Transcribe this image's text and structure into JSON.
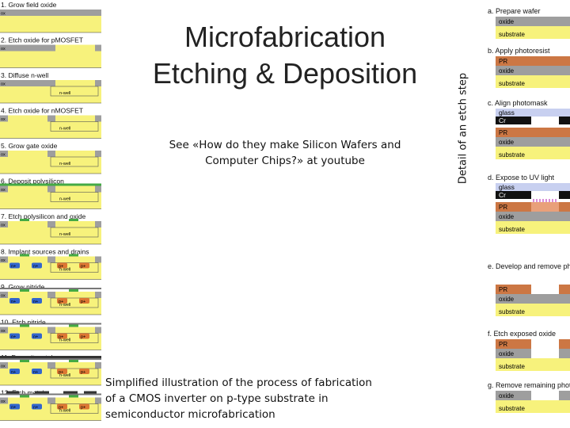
{
  "title": {
    "line1": "Microfabrication",
    "line2": "Etching & Deposition"
  },
  "note": "See «How do they make Silicon Wafers and Computer Chips?» at youtube",
  "caption": "Simplified illustration of the process of fabrication of a CMOS inverter on p-type substrate in semiconductor microfabrication",
  "side_label": "Detail of an etch step",
  "colors": {
    "substrate": "#f7f27c",
    "oxide": "#9e9e9e",
    "photoresist": "#cc7744",
    "glass": "#c8d0f0",
    "chrome": "#111111",
    "uv": "#cc66cc",
    "polysilicon": "#44aa44",
    "metal": "#333333",
    "n_doped": "#3366cc",
    "p_doped": "#dd7733"
  },
  "cmos_steps": [
    {
      "label": "1. Grow field oxide",
      "sub": "p-type substrate",
      "layer": "ox"
    },
    {
      "label": "2. Etch oxide for pMOSFET",
      "sub": "p-type substrate",
      "layer": "ox"
    },
    {
      "label": "3. Diffuse n-well",
      "sub": "p-type substrate",
      "layer": "ox",
      "well": "n-well"
    },
    {
      "label": "4. Etch oxide for nMOSFET",
      "sub": "p-type substrate",
      "layer": "ox",
      "well": "n-well"
    },
    {
      "label": "5. Grow gate oxide",
      "sub": "p-type substrate",
      "layer": "ox",
      "well": "n-well"
    },
    {
      "label": "6. Deposit polysilicon",
      "sub": "p-type substrate",
      "layer": "ox",
      "well": "n-well"
    },
    {
      "label": "7. Etch polysilicon and oxide",
      "sub": "p-type substrate",
      "layer": "ox",
      "well": "n-well"
    },
    {
      "label": "8. Implant sources and drains",
      "sub": "p-type substrate",
      "layer": "ox",
      "well": "n-well",
      "doped": [
        "n+",
        "n+",
        "p+",
        "p+"
      ]
    },
    {
      "label": "9. Grow nitride",
      "sub": "p-type substrate",
      "layer": "ox",
      "well": "n-well",
      "doped": [
        "n+",
        "n+",
        "p+",
        "p+"
      ]
    },
    {
      "label": "10. Etch nitride",
      "sub": "p-type substrate",
      "layer": "ox",
      "well": "n-well",
      "doped": [
        "n+",
        "n+",
        "p+",
        "p+"
      ]
    },
    {
      "label": "11. Deposit metal",
      "sub": "p-type substrate",
      "layer": "ox",
      "well": "n-well",
      "doped": [
        "n+",
        "n+",
        "p+",
        "p+"
      ]
    },
    {
      "label": "12. Etch metal",
      "sub": "p-type substrate",
      "layer": "ox",
      "well": "n-well",
      "doped": [
        "n+",
        "n+",
        "p+",
        "p+"
      ]
    }
  ],
  "etch_steps": [
    {
      "label": "a. Prepare wafer",
      "layers": [
        "oxide",
        "substrate"
      ]
    },
    {
      "label": "b. Apply photoresist",
      "layers": [
        "PR",
        "oxide",
        "substrate"
      ]
    },
    {
      "label": "c. Align photomask",
      "mask": [
        "glass",
        "Cr"
      ],
      "layers": [
        "PR",
        "oxide",
        "substrate"
      ]
    },
    {
      "label": "d. Expose to UV light",
      "mask": [
        "glass",
        "Cr"
      ],
      "layers": [
        "PR",
        "oxide",
        "substrate"
      ]
    },
    {
      "label": "e. Develop and remove photoresist exposed to UV light",
      "layers": [
        "PR",
        "oxide",
        "substrate"
      ]
    },
    {
      "label": "f. Etch exposed oxide",
      "layers": [
        "PR",
        "oxide",
        "substrate"
      ]
    },
    {
      "label": "g. Remove remaining photoresist",
      "layers": [
        "oxide",
        "substrate"
      ]
    }
  ]
}
